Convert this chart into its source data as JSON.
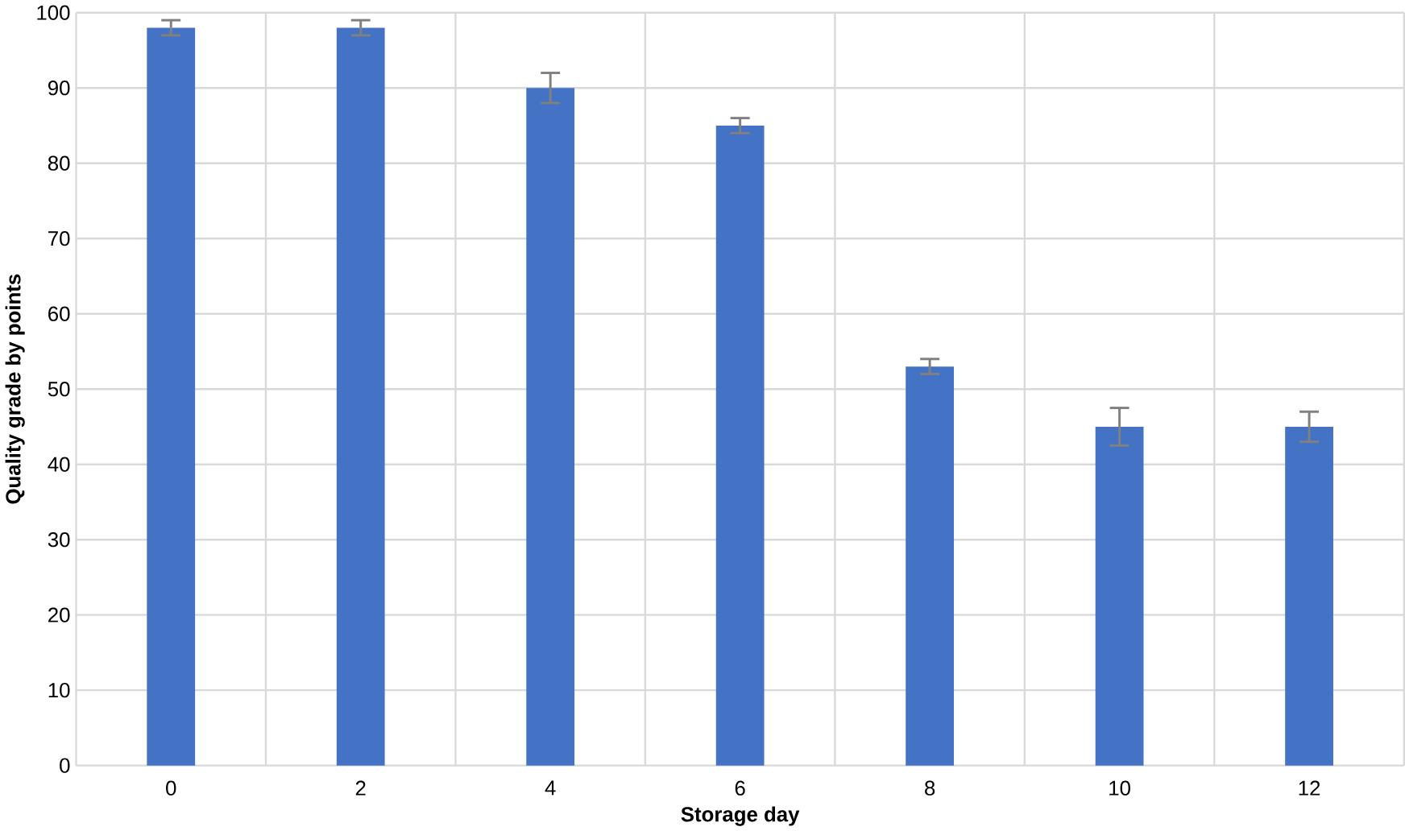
{
  "chart_data": {
    "type": "bar",
    "xlabel": "Storage day",
    "ylabel": "Quality grade by points",
    "categories": [
      "0",
      "2",
      "4",
      "6",
      "8",
      "10",
      "12"
    ],
    "values": [
      98,
      98,
      90,
      85,
      53,
      45,
      45
    ],
    "errors": [
      1,
      1,
      2,
      1,
      1,
      2.5,
      2
    ],
    "color": "#4472c4",
    "ylim": [
      0,
      100
    ],
    "yticks": [
      0,
      10,
      20,
      30,
      40,
      50,
      60,
      70,
      80,
      90,
      100
    ],
    "grid": true
  }
}
